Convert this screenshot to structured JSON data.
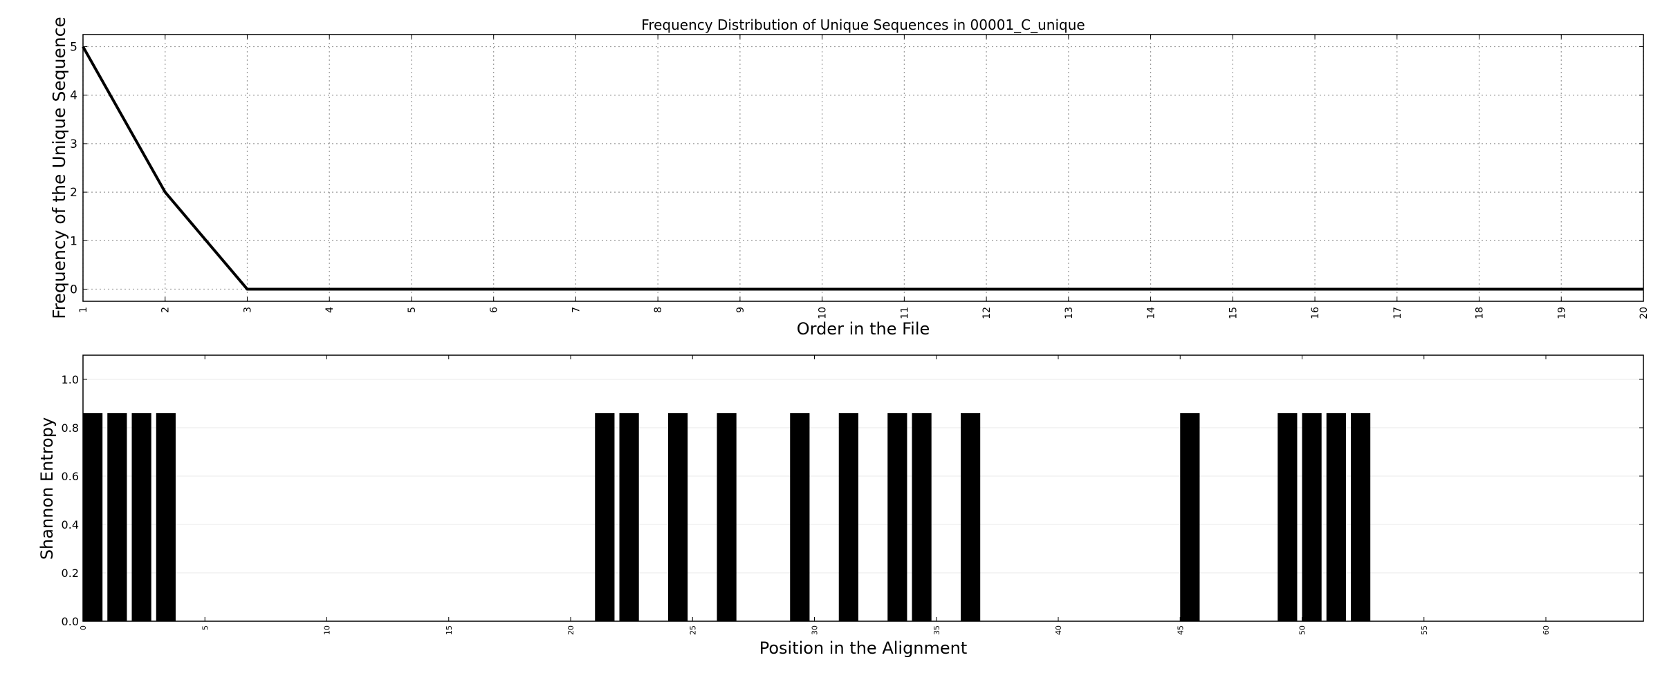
{
  "chart_data": [
    {
      "type": "line",
      "title": "Frequency Distribution of Unique Sequences in 00001_C_unique",
      "xlabel": "Order in the File",
      "ylabel": "Frequency of the Unique Sequence",
      "x": [
        1,
        2,
        3,
        4,
        5,
        6,
        7,
        8,
        9,
        10,
        11,
        12,
        13,
        14,
        15,
        16,
        17,
        18,
        19,
        20
      ],
      "y": [
        5,
        2,
        0,
        0,
        0,
        0,
        0,
        0,
        0,
        0,
        0,
        0,
        0,
        0,
        0,
        0,
        0,
        0,
        0,
        0
      ],
      "xlim": [
        1,
        20
      ],
      "ylim": [
        -0.25,
        5.25
      ],
      "xticks": [
        "1",
        "2",
        "3",
        "4",
        "5",
        "6",
        "7",
        "8",
        "9",
        "10",
        "11",
        "12",
        "13",
        "14",
        "15",
        "16",
        "17",
        "18",
        "19",
        "20"
      ],
      "yticks": [
        "0",
        "1",
        "2",
        "3",
        "4",
        "5"
      ],
      "grid": true,
      "line_color": "#000000"
    },
    {
      "type": "bar",
      "title": "",
      "xlabel": "Position in the Alignment",
      "ylabel": "Shannon Entropy",
      "x": [
        0,
        1,
        2,
        3,
        21,
        22,
        24,
        26,
        29,
        31,
        33,
        34,
        36,
        45,
        49,
        50,
        51,
        52
      ],
      "values": [
        0.86,
        0.86,
        0.86,
        0.86,
        0.86,
        0.86,
        0.86,
        0.86,
        0.86,
        0.86,
        0.86,
        0.86,
        0.86,
        0.86,
        0.86,
        0.86,
        0.86,
        0.86
      ],
      "xlim": [
        0,
        64
      ],
      "ylim": [
        0,
        1.1
      ],
      "xticks": [
        "0",
        "5",
        "10",
        "15",
        "20",
        "25",
        "30",
        "35",
        "40",
        "45",
        "50",
        "55",
        "60"
      ],
      "yticks": [
        "0.0",
        "0.2",
        "0.4",
        "0.6",
        "0.8",
        "1.0"
      ],
      "grid": true,
      "bar_color": "#000000"
    }
  ]
}
